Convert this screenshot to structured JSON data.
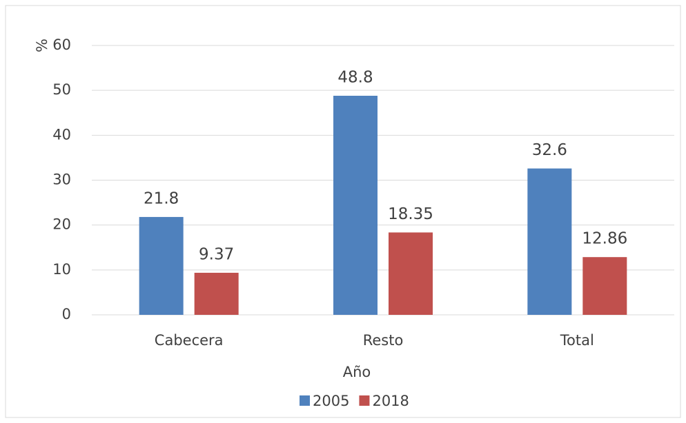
{
  "chart_data": {
    "type": "bar",
    "categories": [
      "Cabecera",
      "Resto",
      "Total"
    ],
    "series": [
      {
        "name": "2005",
        "color": "#4f81bd",
        "values": [
          21.8,
          48.8,
          32.6
        ]
      },
      {
        "name": "2018",
        "color": "#c0504d",
        "values": [
          9.37,
          18.35,
          12.86
        ]
      }
    ],
    "y_label": "%",
    "x_label": "Año",
    "ylim": [
      0,
      60
    ],
    "yticks": [
      0,
      10,
      20,
      30,
      40,
      50,
      60
    ],
    "grid": true,
    "legend": "bottom"
  }
}
